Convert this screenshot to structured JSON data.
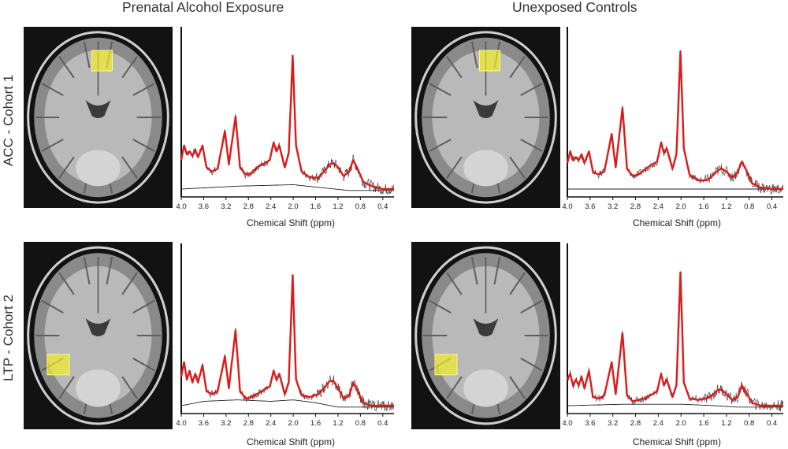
{
  "columns": [
    "Prenatal Alcohol Exposure",
    "Unexposed Controls"
  ],
  "rows": [
    "ACC - Cohort 1",
    "LTP - Cohort 2"
  ],
  "colors": {
    "fit": "#dd1a1a",
    "raw": "#333333",
    "roi": "#f2ee2a",
    "baseline": "#222222"
  },
  "chart_data": [
    {
      "type": "line",
      "panel": "ACC - Cohort 1 / Prenatal Alcohol Exposure",
      "xlabel": "Chemical Shift (ppm)",
      "xlim": [
        4.0,
        0.2
      ],
      "x_reversed": true,
      "xticks": [
        "4.0",
        "3.6",
        "3.2",
        "2.8",
        "2.4",
        "2.0",
        "1.6",
        "1.2",
        "0.8",
        "0.4"
      ],
      "series": [
        {
          "values": [
            [
              4.0,
              0.2
            ],
            [
              3.95,
              0.3
            ],
            [
              3.9,
              0.24
            ],
            [
              3.85,
              0.26
            ],
            [
              3.8,
              0.23
            ],
            [
              3.75,
              0.27
            ],
            [
              3.7,
              0.22
            ],
            [
              3.62,
              0.3
            ],
            [
              3.55,
              0.15
            ],
            [
              3.45,
              0.12
            ],
            [
              3.35,
              0.14
            ],
            [
              3.22,
              0.4
            ],
            [
              3.15,
              0.17
            ],
            [
              3.03,
              0.5
            ],
            [
              2.95,
              0.15
            ],
            [
              2.85,
              0.1
            ],
            [
              2.75,
              0.11
            ],
            [
              2.65,
              0.15
            ],
            [
              2.55,
              0.17
            ],
            [
              2.5,
              0.18
            ],
            [
              2.42,
              0.2
            ],
            [
              2.35,
              0.32
            ],
            [
              2.3,
              0.26
            ],
            [
              2.25,
              0.3
            ],
            [
              2.15,
              0.15
            ],
            [
              2.08,
              0.25
            ],
            [
              2.01,
              0.92
            ],
            [
              1.95,
              0.3
            ],
            [
              1.85,
              0.12
            ],
            [
              1.7,
              0.08
            ],
            [
              1.55,
              0.08
            ],
            [
              1.45,
              0.12
            ],
            [
              1.35,
              0.17
            ],
            [
              1.28,
              0.18
            ],
            [
              1.2,
              0.15
            ],
            [
              1.1,
              0.09
            ],
            [
              1.0,
              0.12
            ],
            [
              0.93,
              0.2
            ],
            [
              0.85,
              0.14
            ],
            [
              0.75,
              0.05
            ],
            [
              0.6,
              0.02
            ],
            [
              0.4,
              0.0
            ],
            [
              0.2,
              0.0
            ]
          ]
        },
        {
          "values": [
            [
              4.0,
              0.0
            ],
            [
              3.0,
              0.02
            ],
            [
              2.0,
              0.03
            ],
            [
              1.5,
              0.01
            ],
            [
              1.0,
              -0.01
            ],
            [
              0.2,
              -0.01
            ]
          ]
        }
      ]
    },
    {
      "type": "line",
      "panel": "ACC - Cohort 1 / Unexposed Controls",
      "xlabel": "Chemical Shift (ppm)",
      "xlim": [
        4.0,
        0.2
      ],
      "x_reversed": true,
      "xticks": [
        "4.0",
        "3.6",
        "3.2",
        "2.8",
        "2.4",
        "2.0",
        "1.6",
        "1.2",
        "0.8",
        "0.4"
      ],
      "series": [
        {
          "values": [
            [
              4.0,
              0.18
            ],
            [
              3.95,
              0.26
            ],
            [
              3.9,
              0.2
            ],
            [
              3.85,
              0.22
            ],
            [
              3.8,
              0.2
            ],
            [
              3.75,
              0.24
            ],
            [
              3.7,
              0.18
            ],
            [
              3.62,
              0.26
            ],
            [
              3.55,
              0.12
            ],
            [
              3.45,
              0.1
            ],
            [
              3.35,
              0.12
            ],
            [
              3.22,
              0.38
            ],
            [
              3.15,
              0.15
            ],
            [
              3.03,
              0.56
            ],
            [
              2.95,
              0.14
            ],
            [
              2.85,
              0.09
            ],
            [
              2.75,
              0.1
            ],
            [
              2.65,
              0.13
            ],
            [
              2.55,
              0.16
            ],
            [
              2.5,
              0.17
            ],
            [
              2.42,
              0.19
            ],
            [
              2.35,
              0.32
            ],
            [
              2.3,
              0.25
            ],
            [
              2.25,
              0.28
            ],
            [
              2.15,
              0.14
            ],
            [
              2.08,
              0.24
            ],
            [
              2.01,
              0.95
            ],
            [
              1.95,
              0.28
            ],
            [
              1.85,
              0.1
            ],
            [
              1.7,
              0.06
            ],
            [
              1.55,
              0.06
            ],
            [
              1.45,
              0.09
            ],
            [
              1.35,
              0.13
            ],
            [
              1.28,
              0.14
            ],
            [
              1.2,
              0.12
            ],
            [
              1.1,
              0.08
            ],
            [
              1.0,
              0.12
            ],
            [
              0.93,
              0.19
            ],
            [
              0.85,
              0.13
            ],
            [
              0.75,
              0.04
            ],
            [
              0.6,
              0.01
            ],
            [
              0.4,
              0.0
            ],
            [
              0.2,
              0.0
            ]
          ]
        },
        {
          "values": [
            [
              4.0,
              0.0
            ],
            [
              3.0,
              0.0
            ],
            [
              2.0,
              0.0
            ],
            [
              1.0,
              0.0
            ],
            [
              0.2,
              0.0
            ]
          ]
        }
      ]
    },
    {
      "type": "line",
      "panel": "LTP - Cohort 2 / Prenatal Alcohol Exposure",
      "xlabel": "Chemical Shift (ppm)",
      "xlim": [
        4.0,
        0.2
      ],
      "x_reversed": true,
      "xticks": [
        "4.0",
        "3.6",
        "3.2",
        "2.8",
        "2.4",
        "2.0",
        "1.6",
        "1.2",
        "0.8",
        "0.4"
      ],
      "series": [
        {
          "values": [
            [
              4.0,
              0.2
            ],
            [
              3.95,
              0.3
            ],
            [
              3.9,
              0.18
            ],
            [
              3.85,
              0.24
            ],
            [
              3.8,
              0.16
            ],
            [
              3.75,
              0.22
            ],
            [
              3.7,
              0.16
            ],
            [
              3.62,
              0.28
            ],
            [
              3.55,
              0.1
            ],
            [
              3.45,
              0.08
            ],
            [
              3.35,
              0.1
            ],
            [
              3.22,
              0.34
            ],
            [
              3.15,
              0.12
            ],
            [
              3.03,
              0.52
            ],
            [
              2.95,
              0.1
            ],
            [
              2.85,
              0.05
            ],
            [
              2.75,
              0.06
            ],
            [
              2.65,
              0.08
            ],
            [
              2.55,
              0.1
            ],
            [
              2.5,
              0.12
            ],
            [
              2.42,
              0.13
            ],
            [
              2.35,
              0.24
            ],
            [
              2.3,
              0.18
            ],
            [
              2.25,
              0.22
            ],
            [
              2.15,
              0.08
            ],
            [
              2.08,
              0.16
            ],
            [
              2.01,
              0.9
            ],
            [
              1.95,
              0.18
            ],
            [
              1.85,
              0.07
            ],
            [
              1.7,
              0.06
            ],
            [
              1.55,
              0.08
            ],
            [
              1.45,
              0.12
            ],
            [
              1.35,
              0.17
            ],
            [
              1.28,
              0.17
            ],
            [
              1.2,
              0.12
            ],
            [
              1.1,
              0.05
            ],
            [
              1.0,
              0.07
            ],
            [
              0.93,
              0.16
            ],
            [
              0.85,
              0.1
            ],
            [
              0.75,
              0.02
            ],
            [
              0.6,
              0.0
            ],
            [
              0.4,
              0.0
            ],
            [
              0.2,
              0.0
            ]
          ]
        },
        {
          "values": [
            [
              4.0,
              0.0
            ],
            [
              3.6,
              0.03
            ],
            [
              3.0,
              0.04
            ],
            [
              2.4,
              0.03
            ],
            [
              2.0,
              0.04
            ],
            [
              1.6,
              0.02
            ],
            [
              1.2,
              -0.01
            ],
            [
              0.8,
              -0.01
            ],
            [
              0.2,
              -0.01
            ]
          ]
        }
      ]
    },
    {
      "type": "line",
      "panel": "LTP - Cohort 2 / Unexposed Controls",
      "xlabel": "Chemical Shift (ppm)",
      "xlim": [
        4.0,
        0.2
      ],
      "x_reversed": true,
      "xticks": [
        "4.0",
        "3.6",
        "3.2",
        "2.8",
        "2.4",
        "2.0",
        "1.6",
        "1.2",
        "0.8",
        "0.4"
      ],
      "series": [
        {
          "values": [
            [
              4.0,
              0.18
            ],
            [
              3.95,
              0.22
            ],
            [
              3.9,
              0.14
            ],
            [
              3.85,
              0.18
            ],
            [
              3.8,
              0.14
            ],
            [
              3.75,
              0.2
            ],
            [
              3.7,
              0.12
            ],
            [
              3.62,
              0.24
            ],
            [
              3.55,
              0.06
            ],
            [
              3.45,
              0.05
            ],
            [
              3.35,
              0.07
            ],
            [
              3.22,
              0.3
            ],
            [
              3.15,
              0.08
            ],
            [
              3.03,
              0.5
            ],
            [
              2.95,
              0.07
            ],
            [
              2.85,
              0.03
            ],
            [
              2.75,
              0.04
            ],
            [
              2.65,
              0.05
            ],
            [
              2.55,
              0.07
            ],
            [
              2.5,
              0.08
            ],
            [
              2.42,
              0.1
            ],
            [
              2.35,
              0.22
            ],
            [
              2.3,
              0.14
            ],
            [
              2.25,
              0.18
            ],
            [
              2.15,
              0.06
            ],
            [
              2.08,
              0.14
            ],
            [
              2.01,
              0.92
            ],
            [
              1.95,
              0.16
            ],
            [
              1.85,
              0.05
            ],
            [
              1.7,
              0.04
            ],
            [
              1.55,
              0.05
            ],
            [
              1.45,
              0.07
            ],
            [
              1.35,
              0.11
            ],
            [
              1.28,
              0.11
            ],
            [
              1.2,
              0.08
            ],
            [
              1.1,
              0.04
            ],
            [
              1.0,
              0.06
            ],
            [
              0.93,
              0.14
            ],
            [
              0.85,
              0.09
            ],
            [
              0.75,
              0.02
            ],
            [
              0.6,
              0.0
            ],
            [
              0.4,
              0.0
            ],
            [
              0.2,
              0.0
            ]
          ]
        },
        {
          "values": [
            [
              4.0,
              0.0
            ],
            [
              3.0,
              0.01
            ],
            [
              2.0,
              0.01
            ],
            [
              1.4,
              0.0
            ],
            [
              1.0,
              -0.01
            ],
            [
              0.2,
              -0.01
            ]
          ]
        }
      ]
    }
  ]
}
